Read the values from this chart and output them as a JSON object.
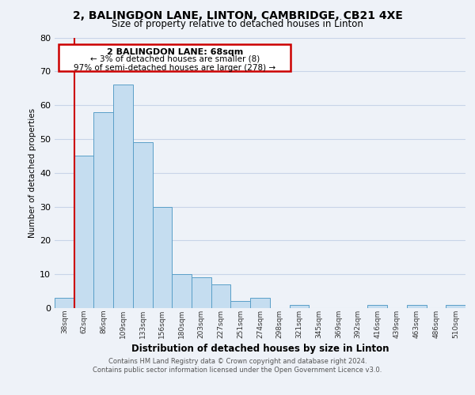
{
  "title_line1": "2, BALINGDON LANE, LINTON, CAMBRIDGE, CB21 4XE",
  "title_line2": "Size of property relative to detached houses in Linton",
  "xlabel": "Distribution of detached houses by size in Linton",
  "ylabel": "Number of detached properties",
  "bin_labels": [
    "38sqm",
    "62sqm",
    "86sqm",
    "109sqm",
    "133sqm",
    "156sqm",
    "180sqm",
    "203sqm",
    "227sqm",
    "251sqm",
    "274sqm",
    "298sqm",
    "321sqm",
    "345sqm",
    "369sqm",
    "392sqm",
    "416sqm",
    "439sqm",
    "463sqm",
    "486sqm",
    "510sqm"
  ],
  "bar_heights": [
    3,
    45,
    58,
    66,
    49,
    30,
    10,
    9,
    7,
    2,
    3,
    0,
    1,
    0,
    0,
    0,
    1,
    0,
    1,
    0,
    1
  ],
  "bar_color": "#c5ddf0",
  "bar_edge_color": "#5a9fc8",
  "highlight_label": "2 BALINGDON LANE: 68sqm",
  "annotation_line1": "← 3% of detached houses are smaller (8)",
  "annotation_line2": "97% of semi-detached houses are larger (278) →",
  "vline_color": "#cc0000",
  "annotation_box_edge": "#cc0000",
  "footer_line1": "Contains HM Land Registry data © Crown copyright and database right 2024.",
  "footer_line2": "Contains public sector information licensed under the Open Government Licence v3.0.",
  "ylim": [
    0,
    80
  ],
  "background_color": "#eef2f8",
  "plot_bg_color": "#eef2f8",
  "grid_color": "#c8d4e8"
}
